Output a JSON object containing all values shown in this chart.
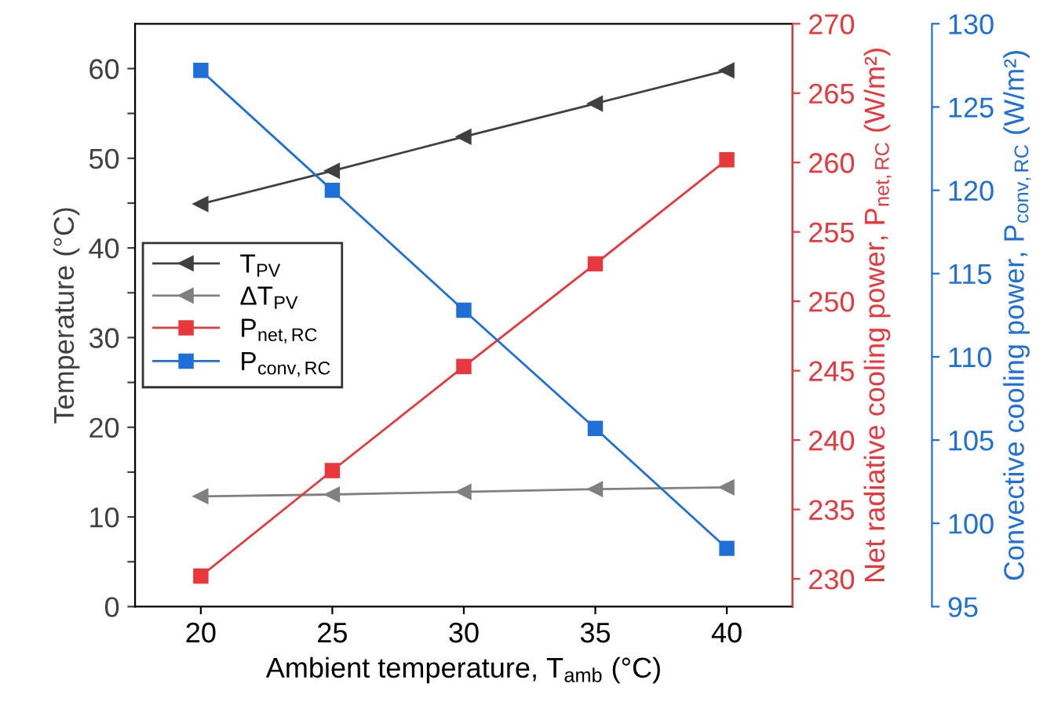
{
  "chart_data": {
    "type": "line",
    "xlabel": "Ambient temperature, T$_{amb}$ (°C)",
    "ylabel": "Temperature (°C)",
    "y2label": "Net radiative cooling power, P$_{net,RC}$ (W/m²)",
    "y3label": "Convective cooling power, P$_{conv,RC}$ (W/m²)",
    "x": [
      20,
      25,
      30,
      35,
      40
    ],
    "xlim": [
      17.5,
      42.5
    ],
    "xticks": [
      20,
      25,
      30,
      35,
      40
    ],
    "ylim": [
      0,
      65
    ],
    "yticks": [
      0,
      {
        "value": 5,
        "label": null
      },
      10,
      {
        "value": 15,
        "label": null
      },
      20,
      {
        "value": 25,
        "label": null
      },
      30,
      {
        "value": 35,
        "label": null
      },
      40,
      {
        "value": 45,
        "label": null
      },
      50,
      {
        "value": 55,
        "label": null
      },
      60
    ],
    "y2lim": [
      228,
      270
    ],
    "y2ticks": [
      230,
      235,
      240,
      245,
      250,
      255,
      260,
      265,
      270
    ],
    "y3lim": [
      95,
      130
    ],
    "y3ticks": [
      95,
      100,
      105,
      110,
      115,
      120,
      125,
      130
    ],
    "legend": "left",
    "grid": false,
    "series": [
      {
        "name": "T$_{PV}$",
        "color": "#404040",
        "marker": "triangle",
        "values": [
          44.9,
          48.6,
          52.4,
          56.1,
          59.8
        ]
      },
      {
        "name": "ΔT$_{PV}$",
        "color": "#808080",
        "marker": "triangle",
        "values": [
          12.3,
          12.5,
          12.8,
          13.1,
          13.3
        ]
      },
      {
        "name": "P$_{net,RC}$",
        "color": "#e8383d",
        "marker": "square",
        "axis": "y2",
        "values": [
          230.2,
          237.8,
          245.3,
          252.7,
          260.2
        ]
      },
      {
        "name": "P$_{conv,RC}$",
        "color": "#1f6fd8",
        "marker": "square",
        "axis": "y3",
        "values": [
          127.2,
          120.0,
          112.8,
          105.7,
          98.5
        ]
      }
    ]
  }
}
